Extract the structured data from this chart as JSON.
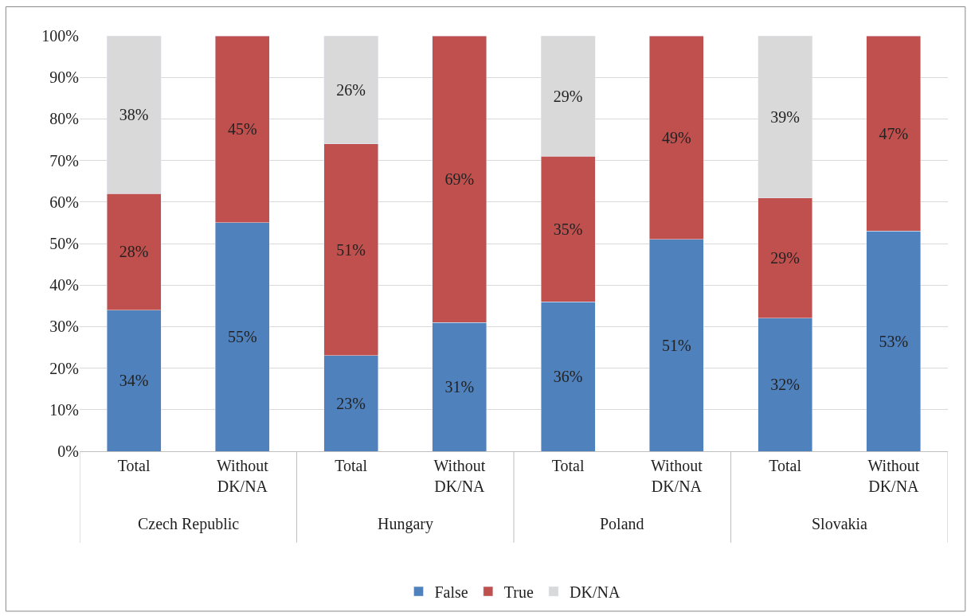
{
  "chart_data": {
    "type": "bar",
    "stacked": true,
    "categories": [
      "Total",
      "Without DK/NA",
      "Total",
      "Without DK/NA",
      "Total",
      "Without DK/NA",
      "Total",
      "Without DK/NA"
    ],
    "series": [
      {
        "name": "False",
        "color": "#4f81bd",
        "values": [
          34,
          55,
          23,
          31,
          36,
          51,
          32,
          53
        ],
        "value_labels": [
          "34%",
          "55%",
          "23%",
          "31%",
          "36%",
          "51%",
          "32%",
          "53%"
        ]
      },
      {
        "name": "True",
        "color": "#c0504d",
        "values": [
          28,
          45,
          51,
          69,
          35,
          49,
          29,
          47
        ],
        "value_labels": [
          "28%",
          "45%",
          "51%",
          "69%",
          "35%",
          "49%",
          "29%",
          "47%"
        ]
      },
      {
        "name": "DK/NA",
        "color": "#d9d9d9",
        "values": [
          38,
          null,
          26,
          null,
          29,
          null,
          39,
          null
        ],
        "value_labels": [
          "38%",
          null,
          "26%",
          null,
          "29%",
          null,
          "39%",
          null
        ]
      }
    ],
    "ylim": [
      0,
      100
    ],
    "yticks": [
      {
        "value": 0,
        "label": "0%"
      },
      {
        "value": 10,
        "label": "10%"
      },
      {
        "value": 20,
        "label": "20%"
      },
      {
        "value": 30,
        "label": "30%"
      },
      {
        "value": 40,
        "label": "40%"
      },
      {
        "value": 50,
        "label": "50%"
      },
      {
        "value": 60,
        "label": "60%"
      },
      {
        "value": 70,
        "label": "70%"
      },
      {
        "value": 80,
        "label": "80%"
      },
      {
        "value": 90,
        "label": "90%"
      },
      {
        "value": 100,
        "label": "100%"
      }
    ],
    "annotations": [
      "Czech Republic",
      "Hungary",
      "Poland",
      "Slovakia"
    ],
    "grid": "y",
    "legend": "bottom"
  }
}
